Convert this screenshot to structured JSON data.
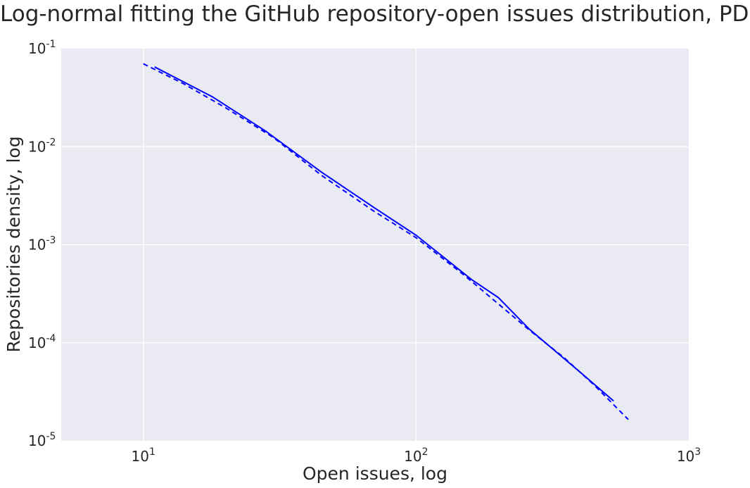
{
  "chart_data": {
    "type": "line",
    "title": "Log-normal fitting the GitHub repository-open issues distribution, PDF",
    "xlabel": "Open issues, log",
    "ylabel": "Repositories density, log",
    "x_scale": "log",
    "y_scale": "log",
    "xlim": [
      5,
      1000
    ],
    "ylim": [
      1e-05,
      0.1
    ],
    "grid": true,
    "x_ticks": [
      {
        "value": 10,
        "base": "10",
        "exp": "1"
      },
      {
        "value": 100,
        "base": "10",
        "exp": "2"
      },
      {
        "value": 1000,
        "base": "10",
        "exp": "3"
      }
    ],
    "y_ticks": [
      {
        "value": 0.1,
        "base": "10",
        "exp": "-1"
      },
      {
        "value": 0.01,
        "base": "10",
        "exp": "-2"
      },
      {
        "value": 0.001,
        "base": "10",
        "exp": "-3"
      },
      {
        "value": 0.0001,
        "base": "10",
        "exp": "-4"
      },
      {
        "value": 1e-05,
        "base": "10",
        "exp": "-5"
      }
    ],
    "series": [
      {
        "style": "solid",
        "color": "#0000ff",
        "x": [
          11,
          18,
          28,
          45,
          70,
          100,
          160,
          200,
          260,
          400,
          530
        ],
        "y": [
          0.065,
          0.032,
          0.0145,
          0.0055,
          0.0024,
          0.00125,
          0.00044,
          0.00029,
          0.000138,
          5e-05,
          2.55e-05
        ]
      },
      {
        "style": "dashed",
        "color": "#0000ff",
        "x": [
          10,
          14,
          20,
          30,
          45,
          70,
          100,
          150,
          200,
          260,
          350,
          450,
          600
        ],
        "y": [
          0.07,
          0.044,
          0.025,
          0.0124,
          0.0051,
          0.0022,
          0.00118,
          0.00049,
          0.00025,
          0.000135,
          7e-05,
          3.7e-05,
          1.65e-05
        ]
      }
    ]
  }
}
